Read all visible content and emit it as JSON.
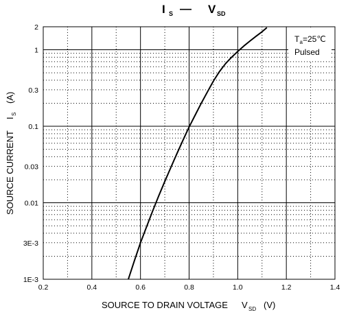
{
  "chart_data": {
    "type": "line",
    "title": {
      "left_symbol": "I",
      "left_subscript": "S",
      "dash": "—",
      "right_symbol": "V",
      "right_subscript": "SD"
    },
    "xlabel": {
      "text": "SOURCE TO DRAIN VOLTAGE",
      "symbol": "V",
      "subscript": "SD",
      "unit": "(V)"
    },
    "ylabel": {
      "text": "SOURCE CURRENT",
      "symbol": "I",
      "subscript": "S",
      "unit": "(A)"
    },
    "xlim": [
      0.2,
      1.4
    ],
    "ylim": [
      0.001,
      2
    ],
    "y_scale": "log",
    "x_ticks": [
      {
        "value": 0.2,
        "label": "0.2"
      },
      {
        "value": 0.4,
        "label": "0.4"
      },
      {
        "value": 0.6,
        "label": "0.6"
      },
      {
        "value": 0.8,
        "label": "0.8"
      },
      {
        "value": 1.0,
        "label": "1.0"
      },
      {
        "value": 1.2,
        "label": "1.2"
      },
      {
        "value": 1.4,
        "label": "1.4"
      }
    ],
    "y_ticks": [
      {
        "value": 2,
        "label": "2"
      },
      {
        "value": 1,
        "label": "1"
      },
      {
        "value": 0.3,
        "label": "0.3"
      },
      {
        "value": 0.1,
        "label": "0.1"
      },
      {
        "value": 0.03,
        "label": "0.03"
      },
      {
        "value": 0.01,
        "label": "0.01"
      },
      {
        "value": 0.003,
        "label": "3E-3"
      },
      {
        "value": 0.001,
        "label": "1E-3"
      }
    ],
    "grid": true,
    "annotation": {
      "symbol": "T",
      "subscript": "a",
      "value": "=25℃",
      "second_line": "Pulsed",
      "placement": "top-right"
    },
    "series": [
      {
        "x": [
          0.55,
          0.575,
          0.6,
          0.625,
          0.65,
          0.675,
          0.7,
          0.725,
          0.75,
          0.775,
          0.8,
          0.825,
          0.85,
          0.875,
          0.9,
          0.925,
          0.95,
          0.975,
          1.0,
          1.025,
          1.05,
          1.075,
          1.1,
          1.12
        ],
        "y": [
          0.001,
          0.00175,
          0.003,
          0.00485,
          0.0078,
          0.0123,
          0.019,
          0.029,
          0.044,
          0.066,
          0.098,
          0.14,
          0.2,
          0.28,
          0.39,
          0.52,
          0.66,
          0.8,
          0.95,
          1.12,
          1.3,
          1.5,
          1.72,
          1.95
        ],
        "color": "#000000"
      }
    ]
  }
}
